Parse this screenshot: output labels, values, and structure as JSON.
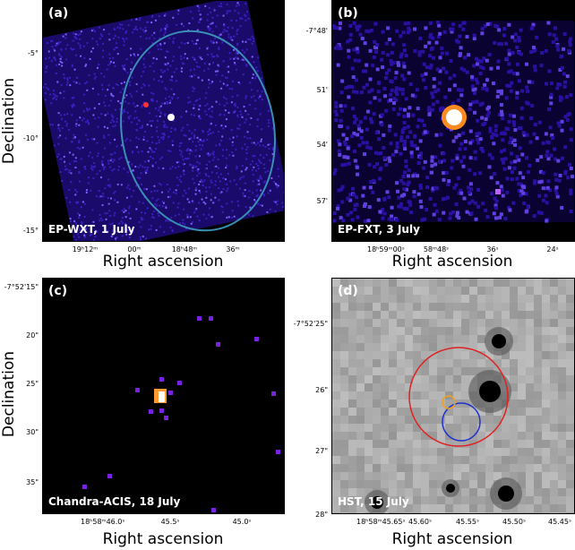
{
  "panels": [
    {
      "label": "(a)",
      "caption": "EP-WXT, 1 July",
      "xticks": [
        "19ʰ12ᵐ",
        "00ᵐ",
        "18ʰ48ᵐ",
        "36ᵐ"
      ],
      "yticks": [
        "-5°",
        "-10°",
        "-15°"
      ],
      "xlabel": "Right ascension",
      "ylabel": "Declination"
    },
    {
      "label": "(b)",
      "caption": "EP-FXT, 3 July",
      "xticks": [
        "18ʰ59ᵐ00ˢ",
        "58ᵐ48ˢ",
        "36ˢ",
        "24ˢ"
      ],
      "yticks": [
        "-7°48'",
        "51'",
        "54'",
        "57'"
      ],
      "xlabel": "Right ascension",
      "ylabel": ""
    },
    {
      "label": "(c)",
      "caption": "Chandra-ACIS, 18 July",
      "xticks": [
        "18ʰ58ᵐ46.0ˢ",
        "45.5ˢ",
        "45.0ˢ"
      ],
      "yticks": [
        "-7°52'15\"",
        "20\"",
        "25\"",
        "30\"",
        "35\""
      ],
      "xlabel": "Right ascension",
      "ylabel": "Declination"
    },
    {
      "label": "(d)",
      "caption": "HST, 15 July",
      "xticks": [
        "18ʰ58ᵐ45.65ˢ",
        "45.60ˢ",
        "45.55ˢ",
        "45.50ˢ",
        "45.45ˢ"
      ],
      "yticks": [
        "-7°52'25\"",
        "26\"",
        "27\"",
        "28\""
      ],
      "xlabel": "Right ascension",
      "ylabel": ""
    }
  ],
  "colors": {
    "ellipse": "#3a8fb5",
    "red_circle": "#e02020",
    "orange_circle": "#f0a020",
    "blue_circle": "#2030d0"
  }
}
